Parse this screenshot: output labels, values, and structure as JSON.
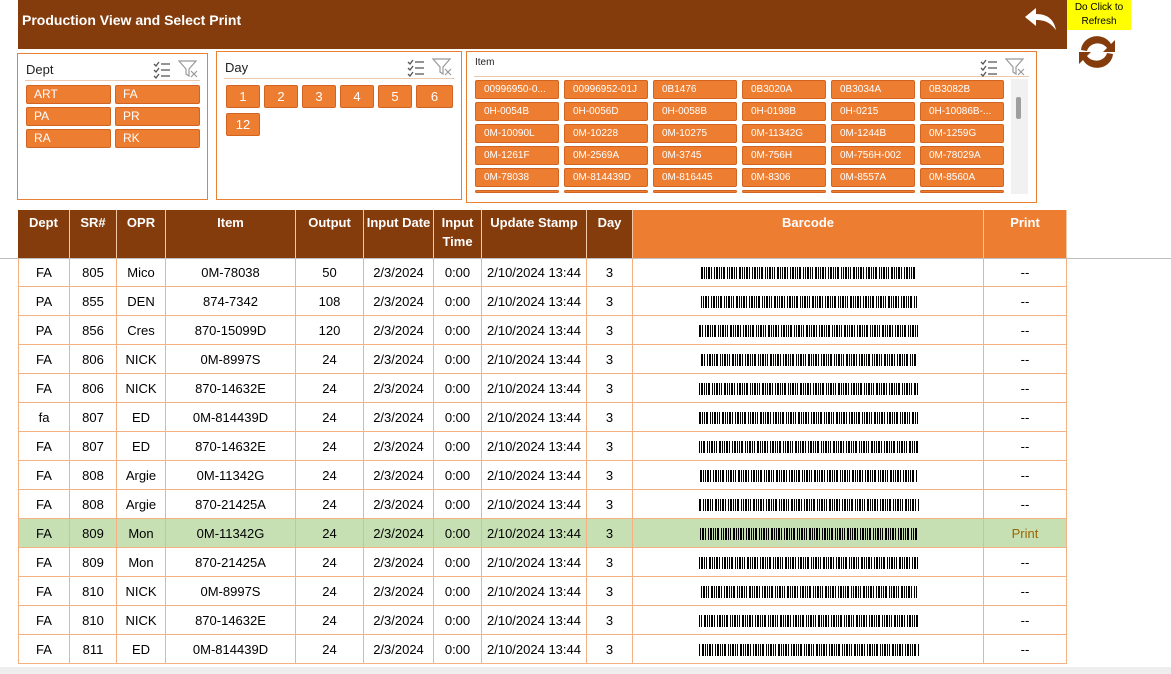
{
  "header": {
    "title": "Production View and Select Print",
    "refresh_note": "Do Click to Refresh",
    "colors": {
      "brown": "#843c0c",
      "orange": "#ed7d31",
      "highlight": "#c6e0b4",
      "note": "#ffff00"
    }
  },
  "slicers": {
    "dept": {
      "title": "Dept",
      "items": [
        "ART",
        "FA",
        "PA",
        "PR",
        "RA",
        "RK"
      ]
    },
    "day": {
      "title": "Day",
      "items": [
        "1",
        "2",
        "3",
        "4",
        "5",
        "6",
        "12"
      ]
    },
    "item": {
      "title": "Item",
      "items": [
        "00996950-0...",
        "00996952-01J",
        "0B1476",
        "0B3020A",
        "0B3034A",
        "0B3082B",
        "0H-0054B",
        "0H-0056D",
        "0H-0058B",
        "0H-0198B",
        "0H-0215",
        "0H-10086B-...",
        "0M-10090L",
        "0M-10228",
        "0M-10275",
        "0M-11342G",
        "0M-1244B",
        "0M-1259G",
        "0M-1261F",
        "0M-2569A",
        "0M-3745",
        "0M-756H",
        "0M-756H-002",
        "0M-78029A",
        "0M-78038",
        "0M-814439D",
        "0M-816445",
        "0M-8306",
        "0M-8557A",
        "0M-8560A"
      ]
    }
  },
  "table": {
    "columns": [
      "Dept",
      "SR#",
      "OPR",
      "Item",
      "Output",
      "Input Date",
      "Input Time",
      "Update Stamp",
      "Day",
      "Barcode",
      "Print"
    ],
    "rows": [
      {
        "dept": "FA",
        "sr": "805",
        "opr": "Mico",
        "item": "0M-78038",
        "output": "50",
        "date": "2/3/2024",
        "time": "0:00",
        "stamp": "2/10/2024 13:44",
        "day": "3",
        "print": "--"
      },
      {
        "dept": "PA",
        "sr": "855",
        "opr": "DEN",
        "item": "874-7342",
        "output": "108",
        "date": "2/3/2024",
        "time": "0:00",
        "stamp": "2/10/2024 13:44",
        "day": "3",
        "print": "--"
      },
      {
        "dept": "PA",
        "sr": "856",
        "opr": "Cres",
        "item": "870-15099D",
        "output": "120",
        "date": "2/3/2024",
        "time": "0:00",
        "stamp": "2/10/2024 13:44",
        "day": "3",
        "print": "--"
      },
      {
        "dept": "FA",
        "sr": "806",
        "opr": "NICK",
        "item": "0M-8997S",
        "output": "24",
        "date": "2/3/2024",
        "time": "0:00",
        "stamp": "2/10/2024 13:44",
        "day": "3",
        "print": "--"
      },
      {
        "dept": "FA",
        "sr": "806",
        "opr": "NICK",
        "item": "870-14632E",
        "output": "24",
        "date": "2/3/2024",
        "time": "0:00",
        "stamp": "2/10/2024 13:44",
        "day": "3",
        "print": "--"
      },
      {
        "dept": "fa",
        "sr": "807",
        "opr": "ED",
        "item": "0M-814439D",
        "output": "24",
        "date": "2/3/2024",
        "time": "0:00",
        "stamp": "2/10/2024 13:44",
        "day": "3",
        "print": "--"
      },
      {
        "dept": "FA",
        "sr": "807",
        "opr": "ED",
        "item": "870-14632E",
        "output": "24",
        "date": "2/3/2024",
        "time": "0:00",
        "stamp": "2/10/2024 13:44",
        "day": "3",
        "print": "--"
      },
      {
        "dept": "FA",
        "sr": "808",
        "opr": "Argie",
        "item": "0M-11342G",
        "output": "24",
        "date": "2/3/2024",
        "time": "0:00",
        "stamp": "2/10/2024 13:44",
        "day": "3",
        "print": "--"
      },
      {
        "dept": "FA",
        "sr": "808",
        "opr": "Argie",
        "item": "870-21425A",
        "output": "24",
        "date": "2/3/2024",
        "time": "0:00",
        "stamp": "2/10/2024 13:44",
        "day": "3",
        "print": "--"
      },
      {
        "dept": "FA",
        "sr": "809",
        "opr": "Mon",
        "item": "0M-11342G",
        "output": "24",
        "date": "2/3/2024",
        "time": "0:00",
        "stamp": "2/10/2024 13:44",
        "day": "3",
        "print": "Print",
        "selected": true
      },
      {
        "dept": "FA",
        "sr": "809",
        "opr": "Mon",
        "item": "870-21425A",
        "output": "24",
        "date": "2/3/2024",
        "time": "0:00",
        "stamp": "2/10/2024 13:44",
        "day": "3",
        "print": "--"
      },
      {
        "dept": "FA",
        "sr": "810",
        "opr": "NICK",
        "item": "0M-8997S",
        "output": "24",
        "date": "2/3/2024",
        "time": "0:00",
        "stamp": "2/10/2024 13:44",
        "day": "3",
        "print": "--"
      },
      {
        "dept": "FA",
        "sr": "810",
        "opr": "NICK",
        "item": "870-14632E",
        "output": "24",
        "date": "2/3/2024",
        "time": "0:00",
        "stamp": "2/10/2024 13:44",
        "day": "3",
        "print": "--"
      },
      {
        "dept": "FA",
        "sr": "811",
        "opr": "ED",
        "item": "0M-814439D",
        "output": "24",
        "date": "2/3/2024",
        "time": "0:00",
        "stamp": "2/10/2024 13:44",
        "day": "3",
        "print": "--"
      }
    ]
  }
}
